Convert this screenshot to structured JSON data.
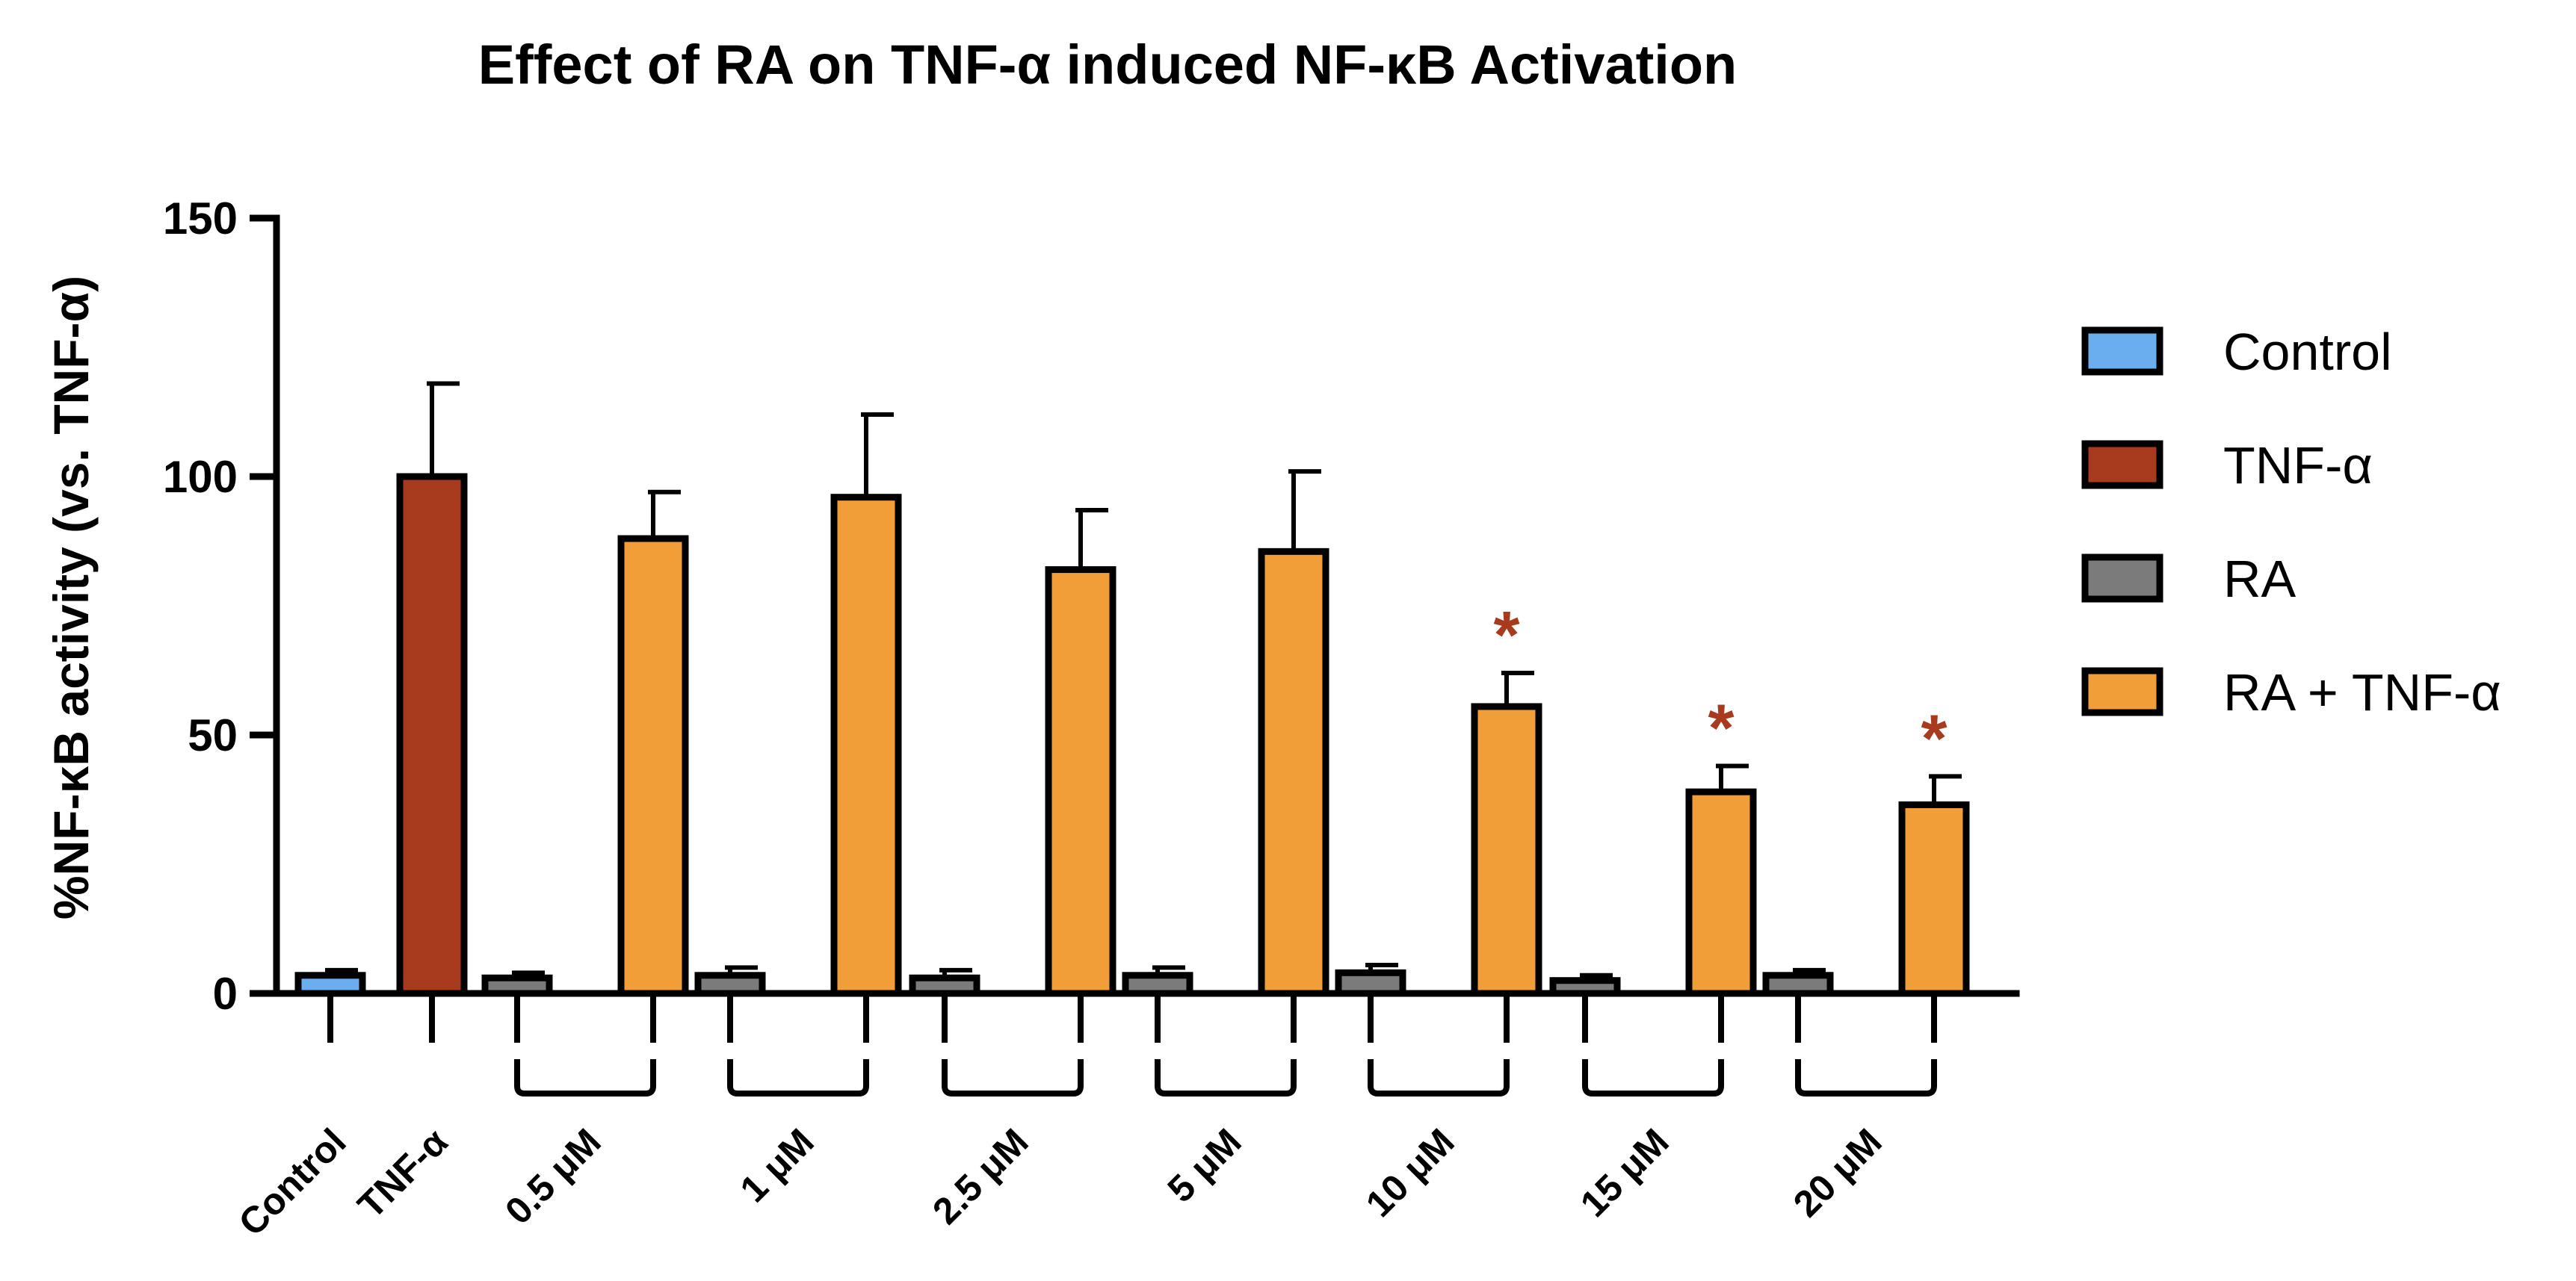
{
  "chart_data": {
    "type": "bar",
    "title": "Effect of RA on TNF-α induced NF-κB Activation",
    "xlabel": "",
    "ylabel": "%NF-κB activity (vs. TNF-α)",
    "ylim": [
      0,
      150
    ],
    "yticks": [
      0,
      50,
      100,
      150
    ],
    "categories": [
      "Control",
      "TNF-α",
      "0.5 μM",
      "1 μM",
      "2.5 μM",
      "5 μM",
      "10 μM",
      "15 μM",
      "20 μM"
    ],
    "series": [
      {
        "name": "Control",
        "color": "#6aaef0"
      },
      {
        "name": "TNF-α",
        "color": "#a83a1e"
      },
      {
        "name": "RA",
        "color": "#7b7b7b"
      },
      {
        "name": "RA + TNF-α",
        "color": "#f29e38"
      }
    ],
    "groups": [
      {
        "category": "Control",
        "bars": [
          {
            "series": "Control",
            "value": 3.5,
            "error": 1.0
          }
        ]
      },
      {
        "category": "TNF-α",
        "bars": [
          {
            "series": "TNF-α",
            "value": 100,
            "error": 18
          }
        ]
      },
      {
        "category": "0.5 μM",
        "bars": [
          {
            "series": "RA",
            "value": 3.0,
            "error": 1.0
          },
          {
            "series": "RA + TNF-α",
            "value": 88,
            "error": 9
          }
        ]
      },
      {
        "category": "1 μM",
        "bars": [
          {
            "series": "RA",
            "value": 3.5,
            "error": 1.5
          },
          {
            "series": "RA + TNF-α",
            "value": 96,
            "error": 16
          }
        ]
      },
      {
        "category": "2.5 μM",
        "bars": [
          {
            "series": "RA",
            "value": 3.0,
            "error": 1.5
          },
          {
            "series": "RA + TNF-α",
            "value": 82,
            "error": 11.5
          }
        ]
      },
      {
        "category": "5 μM",
        "bars": [
          {
            "series": "RA",
            "value": 3.5,
            "error": 1.5
          },
          {
            "series": "RA + TNF-α",
            "value": 85.5,
            "error": 15.5
          }
        ]
      },
      {
        "category": "10 μM",
        "bars": [
          {
            "series": "RA",
            "value": 4.0,
            "error": 1.5
          },
          {
            "series": "RA + TNF-α",
            "value": 55.5,
            "error": 6.5,
            "significance": "*"
          }
        ]
      },
      {
        "category": "15 μM",
        "bars": [
          {
            "series": "RA",
            "value": 2.5,
            "error": 1.0
          },
          {
            "series": "RA + TNF-α",
            "value": 39,
            "error": 5,
            "significance": "*"
          }
        ]
      },
      {
        "category": "20 μM",
        "bars": [
          {
            "series": "RA",
            "value": 3.5,
            "error": 1.0
          },
          {
            "series": "RA + TNF-α",
            "value": 36.5,
            "error": 5.5,
            "significance": "*"
          }
        ]
      }
    ],
    "legend": {
      "placement": "right"
    },
    "significance_color": "#a83a1e",
    "grid": false
  }
}
